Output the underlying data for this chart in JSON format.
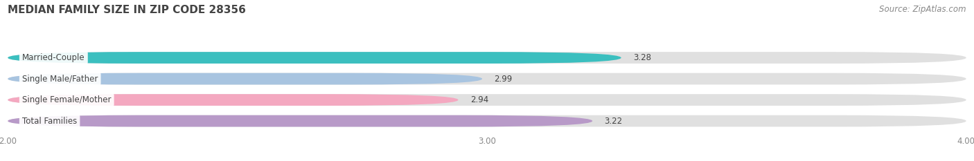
{
  "title": "MEDIAN FAMILY SIZE IN ZIP CODE 28356",
  "source": "Source: ZipAtlas.com",
  "categories": [
    "Married-Couple",
    "Single Male/Father",
    "Single Female/Mother",
    "Total Families"
  ],
  "values": [
    3.28,
    2.99,
    2.94,
    3.22
  ],
  "bar_colors": [
    "#3bbfbf",
    "#a8c4e0",
    "#f4a8c0",
    "#b89ac8"
  ],
  "bar_bg_color": "#e0e0e0",
  "xlim": [
    2.0,
    4.0
  ],
  "xticks": [
    2.0,
    3.0,
    4.0
  ],
  "xtick_labels": [
    "2.00",
    "3.00",
    "4.00"
  ],
  "background_color": "#ffffff",
  "title_fontsize": 11,
  "label_fontsize": 8.5,
  "value_fontsize": 8.5,
  "source_fontsize": 8.5,
  "bar_height": 0.55,
  "label_bg_color": "#ffffff"
}
